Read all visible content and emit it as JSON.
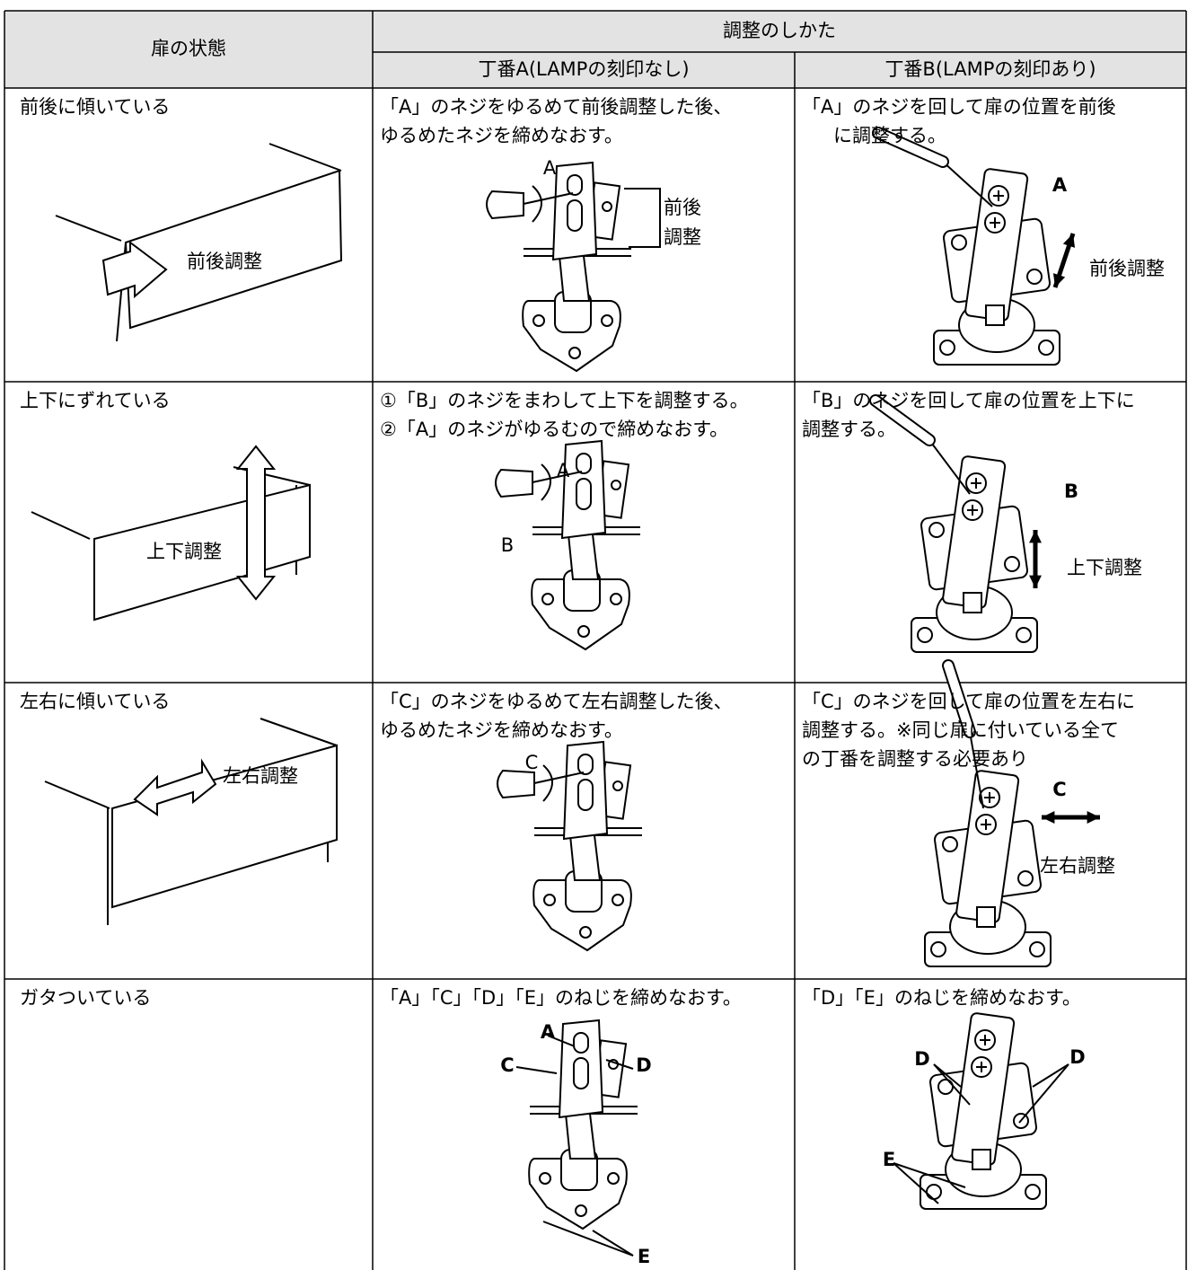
{
  "table": {
    "header": {
      "state": "扉の状態",
      "method": "調整のしかた",
      "hinge_a": "丁番A(LAMPの刻印なし)",
      "hinge_b": "丁番B(LAMPの刻印あり)"
    },
    "rows": [
      {
        "state": "前後に傾いている",
        "state_figure_labels": [
          "前後調整"
        ],
        "hinge_a": {
          "text": [
            "「A」のネジをゆるめて前後調整した後、",
            "ゆるめたネジを締めなおす。"
          ],
          "figure_labels": [
            "A",
            "前後",
            "調整"
          ]
        },
        "hinge_b": {
          "text": [
            "「A」のネジを回して扉の位置を前後",
            "に調整する。"
          ],
          "figure_labels": [
            "A",
            "前後調整"
          ]
        }
      },
      {
        "state": "上下にずれている",
        "state_figure_labels": [
          "上下調整"
        ],
        "hinge_a": {
          "text": [
            "①「B」のネジをまわして上下を調整する。",
            "②「A」のネジがゆるむので締めなおす。"
          ],
          "figure_labels": [
            "A",
            "B"
          ]
        },
        "hinge_b": {
          "text": [
            "「B」のネジを回して扉の位置を上下に",
            "調整する。"
          ],
          "figure_labels": [
            "B",
            "上下調整"
          ]
        }
      },
      {
        "state": "左右に傾いている",
        "state_figure_labels": [
          "左右調整"
        ],
        "hinge_a": {
          "text": [
            "「C」のネジをゆるめて左右調整した後、",
            "ゆるめたネジを締めなおす。"
          ],
          "figure_labels": [
            "C"
          ]
        },
        "hinge_b": {
          "text": [
            "「C」のネジを回して扉の位置を左右に",
            "調整する。※同じ扉に付いている全て",
            "の丁番を調整する必要あり"
          ],
          "figure_labels": [
            "C",
            "左右調整"
          ]
        }
      },
      {
        "state": "ガタついている",
        "hinge_a": {
          "text": [
            "「A」「C」「D」「E」のねじを締めなおす。"
          ],
          "figure_labels": [
            "A",
            "C",
            "D",
            "E"
          ]
        },
        "hinge_b": {
          "text": [
            "「D」「E」のねじを締めなおす。"
          ],
          "figure_labels": [
            "D",
            "D",
            "E"
          ]
        }
      }
    ]
  }
}
